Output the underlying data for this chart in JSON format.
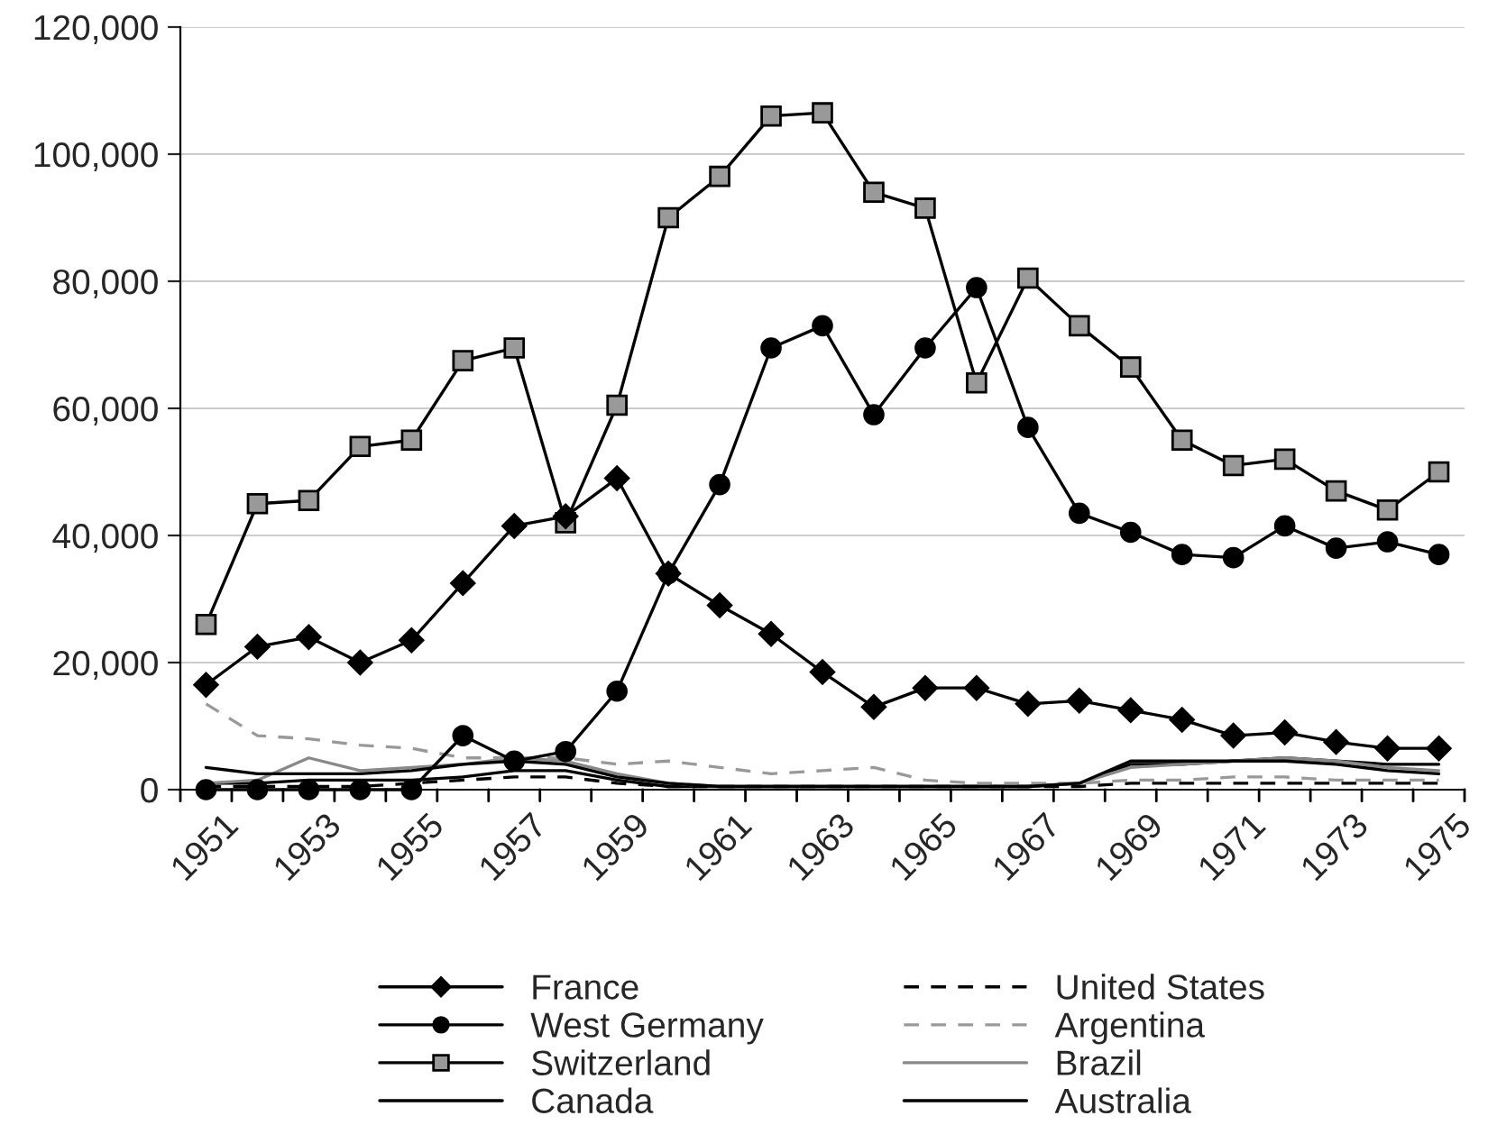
{
  "chart_data": {
    "type": "line",
    "categories": [
      "1951",
      null,
      "1953",
      null,
      "1955",
      null,
      "1957",
      null,
      "1959",
      null,
      "1961",
      null,
      "1963",
      null,
      "1965",
      null,
      "1967",
      null,
      "1969",
      null,
      "1971",
      null,
      "1973",
      null,
      "1975"
    ],
    "series": [
      {
        "name": "France",
        "color": "#000000",
        "marker": "diamond",
        "line_style": "solid",
        "values": [
          16500,
          22500,
          24000,
          20000,
          23500,
          32500,
          41500,
          43000,
          49000,
          34000,
          29000,
          24500,
          18500,
          13000,
          16000,
          16000,
          13500,
          14000,
          12500,
          11000,
          8500,
          9000,
          7500,
          6500,
          6500
        ]
      },
      {
        "name": "West Germany",
        "color": "#000000",
        "marker": "circle",
        "line_style": "solid",
        "values": [
          0,
          0,
          0,
          0,
          0,
          8500,
          4500,
          6000,
          15500,
          34000,
          48000,
          69500,
          73000,
          59000,
          69500,
          79000,
          57000,
          43500,
          40500,
          37000,
          36500,
          41500,
          38000,
          39000,
          37000
        ]
      },
      {
        "name": "Switzerland",
        "color": "#000000",
        "marker": "square",
        "line_style": "solid",
        "values": [
          26000,
          45000,
          45500,
          54000,
          55000,
          67500,
          69500,
          42000,
          60500,
          90000,
          96500,
          106000,
          106500,
          94000,
          91500,
          64000,
          80500,
          73000,
          66500,
          55000,
          51000,
          52000,
          47000,
          44000,
          50000
        ]
      },
      {
        "name": "Canada",
        "color": "#000000",
        "marker": "none",
        "line_style": "solid",
        "values": [
          3500,
          2500,
          2500,
          2500,
          3000,
          4000,
          4500,
          4000,
          2000,
          1000,
          500,
          500,
          500,
          500,
          500,
          500,
          500,
          1000,
          4500,
          4500,
          4500,
          4500,
          4000,
          3000,
          2500
        ]
      },
      {
        "name": "United States",
        "color": "#000000",
        "marker": "none",
        "line_style": "dashed",
        "values": [
          500,
          500,
          500,
          500,
          1000,
          1500,
          2000,
          2000,
          1000,
          500,
          500,
          500,
          500,
          500,
          500,
          500,
          500,
          500,
          1000,
          1000,
          1000,
          1000,
          1000,
          1000,
          1000
        ]
      },
      {
        "name": "Argentina",
        "color": "#999999",
        "marker": "none",
        "line_style": "dashed",
        "values": [
          13500,
          8500,
          8000,
          7000,
          6500,
          5000,
          5000,
          5000,
          4000,
          4500,
          3500,
          2500,
          3000,
          3500,
          1500,
          1000,
          1000,
          1000,
          1500,
          1500,
          2000,
          2000,
          1500,
          1500,
          1500
        ]
      },
      {
        "name": "Brazil",
        "color": "#888888",
        "marker": "none",
        "line_style": "solid",
        "values": [
          1000,
          1500,
          5000,
          3000,
          3500,
          4000,
          5000,
          4500,
          2500,
          1000,
          500,
          500,
          500,
          500,
          500,
          500,
          500,
          1000,
          3500,
          4000,
          4500,
          5000,
          4500,
          3500,
          3000
        ]
      },
      {
        "name": "Australia",
        "color": "#000000",
        "marker": "none",
        "line_style": "solid",
        "values": [
          1000,
          1000,
          1500,
          1500,
          1500,
          2000,
          3000,
          3000,
          1500,
          500,
          500,
          500,
          500,
          500,
          500,
          500,
          500,
          1000,
          4000,
          4000,
          4500,
          5000,
          4500,
          4000,
          4000
        ]
      }
    ],
    "ylim": [
      0,
      120000
    ],
    "yticks": [
      {
        "value": 0,
        "label": "0"
      },
      {
        "value": 20000,
        "label": "20,000"
      },
      {
        "value": 40000,
        "label": "40,000"
      },
      {
        "value": 60000,
        "label": "60,000"
      },
      {
        "value": 80000,
        "label": "80,000"
      },
      {
        "value": 100000,
        "label": "100,000"
      },
      {
        "value": 120000,
        "label": "120,000"
      }
    ],
    "grid": "y",
    "legend": "bottom"
  }
}
